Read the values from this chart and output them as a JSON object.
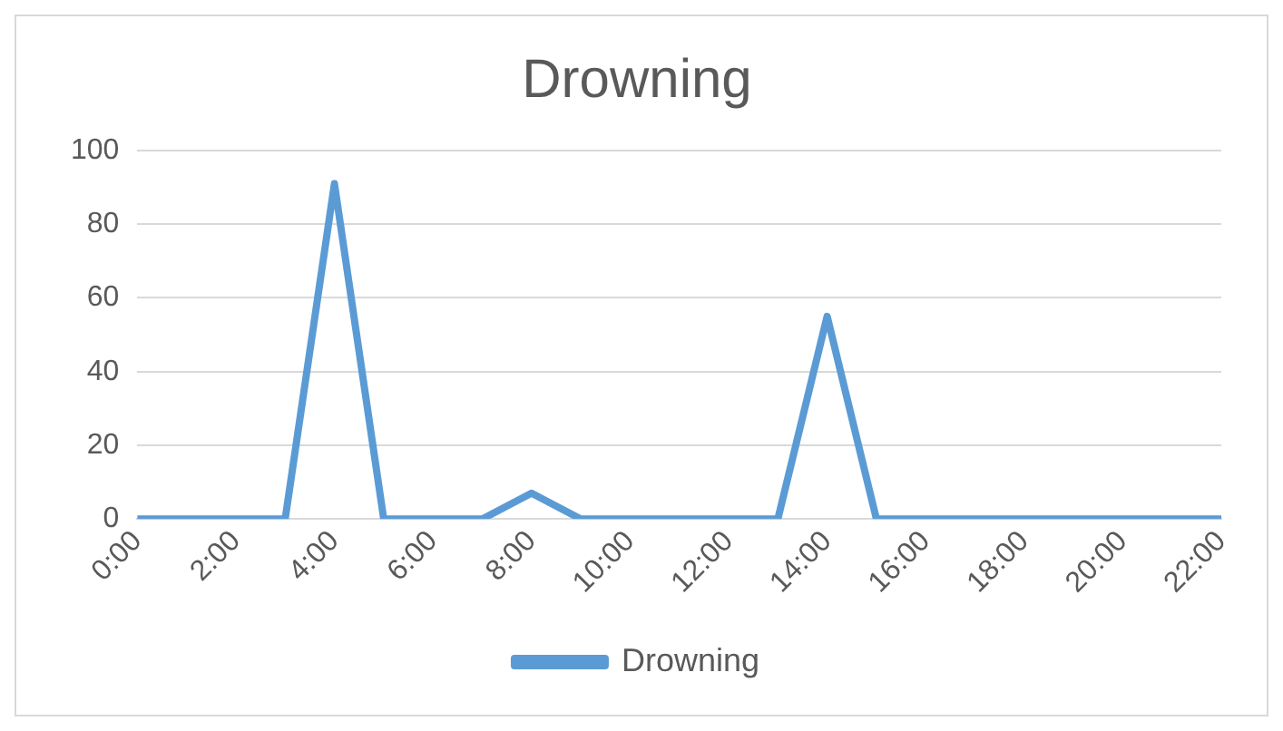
{
  "chart_data": {
    "type": "line",
    "title": "Drowning",
    "categories": [
      "0:00",
      null,
      "2:00",
      null,
      "4:00",
      null,
      "6:00",
      null,
      "8:00",
      null,
      "10:00",
      null,
      "12:00",
      null,
      "14:00",
      null,
      "16:00",
      null,
      "18:00",
      null,
      "20:00",
      null,
      "22:00"
    ],
    "series": [
      {
        "name": "Drowning",
        "color": "#5b9bd5",
        "values": [
          0,
          0,
          0,
          0,
          91,
          0,
          0,
          0,
          7,
          0,
          0,
          0,
          0,
          0,
          55,
          0,
          0,
          0,
          0,
          0,
          0,
          0,
          0
        ]
      }
    ],
    "ylim": [
      0,
      100
    ],
    "yticks": [
      0,
      20,
      40,
      60,
      80,
      100
    ],
    "grid": "y",
    "legend": "bottom",
    "marker": "none",
    "line_style": "solid"
  }
}
